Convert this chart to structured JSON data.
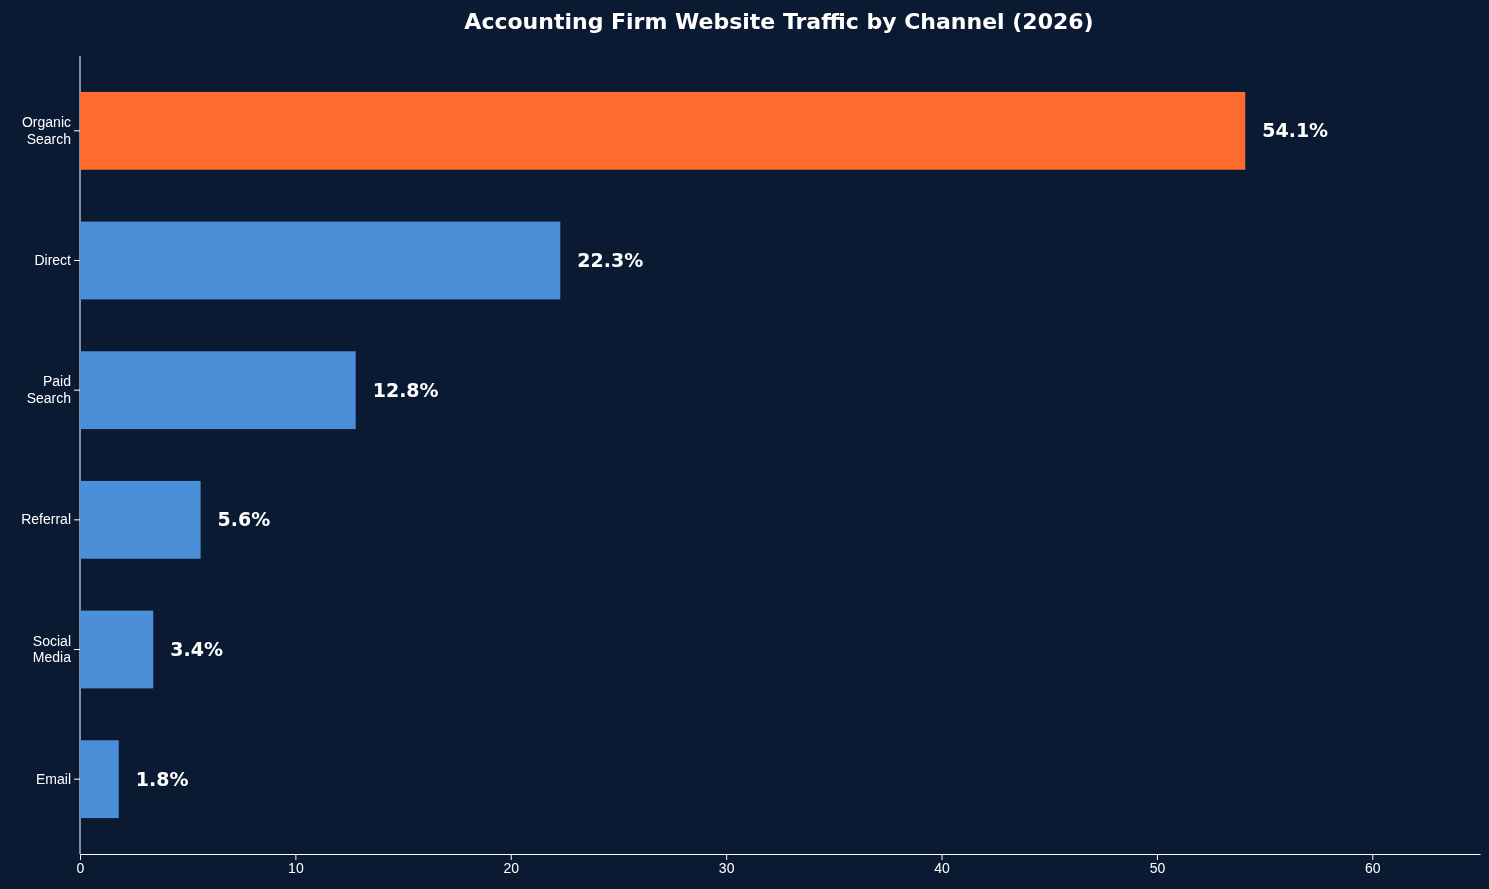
{
  "chart_data": {
    "type": "bar",
    "orientation": "horizontal",
    "title": "Accounting Firm Website Traffic by Channel (2026)",
    "categories": [
      "Organic Search",
      "Direct",
      "Paid Search",
      "Referral",
      "Social Media",
      "Email"
    ],
    "values": [
      54.1,
      22.3,
      12.8,
      5.6,
      3.4,
      1.8
    ],
    "value_labels": [
      "54.1%",
      "22.3%",
      "12.8%",
      "5.6%",
      "3.4%",
      "1.8%"
    ],
    "colors": [
      "#ff6b2e",
      "#4a8fd8",
      "#4a8fd8",
      "#4a8fd8",
      "#4a8fd8",
      "#4a8fd8"
    ],
    "xlim": [
      0,
      65
    ],
    "xticks": [
      0,
      10,
      20,
      30,
      40,
      50,
      60
    ],
    "grid": false
  }
}
